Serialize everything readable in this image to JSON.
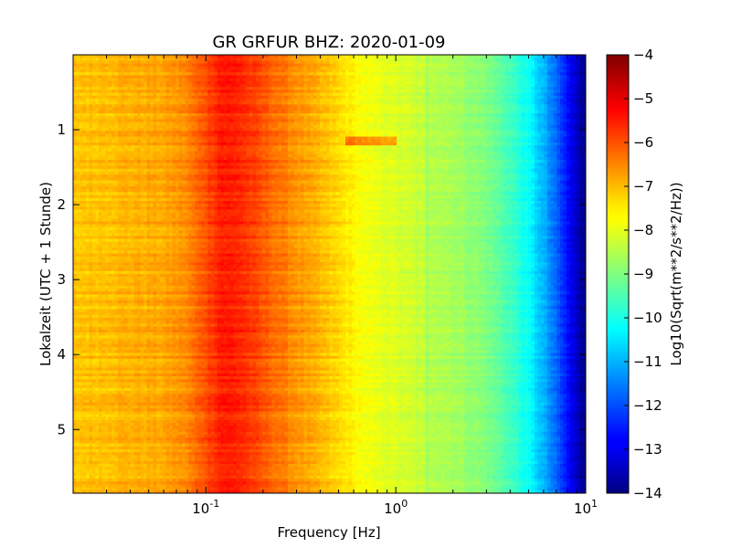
{
  "chart_data": {
    "type": "heatmap",
    "title": "GR GRFUR BHZ: 2020-01-09",
    "xlabel": "Frequency [Hz]",
    "ylabel": "Lokalzeit (UTC + 1 Stunde)",
    "colorbar_label": "Log10(Sqrt(m**2/s**2/Hz))",
    "colormap": "jet",
    "x_scale": "log",
    "xlim": [
      0.02,
      10
    ],
    "ylim": [
      5.85,
      0.0
    ],
    "y_inverted": true,
    "clim": [
      -14,
      -4
    ],
    "x_ticks": [
      {
        "value": 0.1,
        "base": "10",
        "exp": "-1"
      },
      {
        "value": 1,
        "base": "10",
        "exp": "0"
      },
      {
        "value": 10,
        "base": "10",
        "exp": "1"
      }
    ],
    "y_ticks": [
      {
        "value": 1,
        "label": "1"
      },
      {
        "value": 2,
        "label": "2"
      },
      {
        "value": 3,
        "label": "3"
      },
      {
        "value": 4,
        "label": "4"
      },
      {
        "value": 5,
        "label": "5"
      }
    ],
    "colorbar_ticks": [
      {
        "value": -4,
        "label": "−4"
      },
      {
        "value": -5,
        "label": "−5"
      },
      {
        "value": -6,
        "label": "−6"
      },
      {
        "value": -7,
        "label": "−7"
      },
      {
        "value": -8,
        "label": "−8"
      },
      {
        "value": -9,
        "label": "−9"
      },
      {
        "value": -10,
        "label": "−10"
      },
      {
        "value": -11,
        "label": "−11"
      },
      {
        "value": -12,
        "label": "−12"
      },
      {
        "value": -13,
        "label": "−13"
      },
      {
        "value": -14,
        "label": "−14"
      }
    ],
    "spectrum_profile": {
      "frequency_hz": [
        0.02,
        0.04,
        0.06,
        0.08,
        0.1,
        0.12,
        0.15,
        0.2,
        0.3,
        0.5,
        0.7,
        1.0,
        1.5,
        2.0,
        3.0,
        4.0,
        5.0,
        6.0,
        7.0,
        8.0,
        9.0,
        10.0
      ],
      "log10_psd": [
        -7.2,
        -7.0,
        -6.9,
        -6.6,
        -6.0,
        -5.5,
        -5.6,
        -6.1,
        -6.7,
        -7.4,
        -7.9,
        -8.1,
        -8.4,
        -8.6,
        -9.0,
        -9.6,
        -10.2,
        -11.0,
        -11.8,
        -12.6,
        -13.4,
        -13.9
      ]
    },
    "features": [
      {
        "type": "narrow-band line",
        "frequency_hz": 1.45
      },
      {
        "type": "transient",
        "time": 1.15,
        "frequency_range_hz": [
          0.55,
          1.0
        ]
      }
    ]
  }
}
